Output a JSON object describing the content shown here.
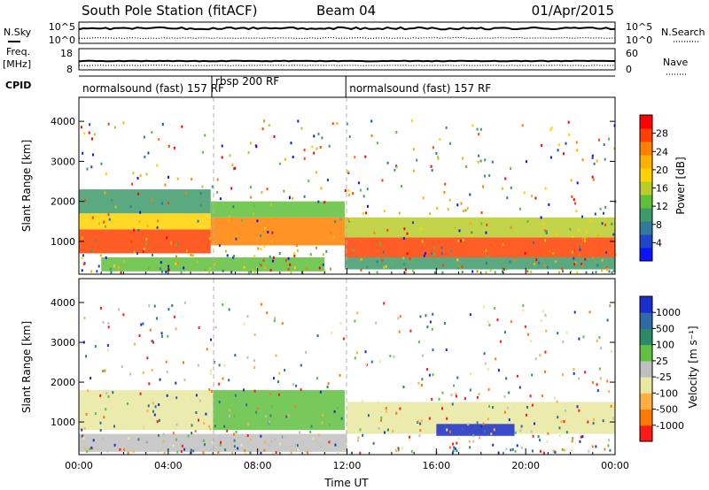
{
  "header": {
    "station": "South Pole Station (fitACF)",
    "beam": "Beam 04",
    "date": "01/Apr/2015"
  },
  "params": {
    "nsky_label": "N.Sky",
    "nsearch_label": "N.Search",
    "left_tick_top": "10^5",
    "left_tick_bottom": "10^0",
    "right_tick_top": "10^5",
    "right_tick_bottom": "10^0",
    "freq_label_1": "Freq.",
    "freq_label_2": "[MHz]",
    "freq_tick_top": "18",
    "freq_tick_bottom": "8",
    "nave_label": "Nave",
    "nave_tick_top": "60",
    "nave_tick_bottom": "0",
    "cpid_label": "CPID",
    "modes": [
      {
        "text": "normalsound (fast) 157 RF",
        "start_hour": 0,
        "end_hour": 5.95
      },
      {
        "text": "rbsp 200 RF",
        "start_hour": 5.95,
        "end_hour": 11.95
      },
      {
        "text": "normalsound (fast) 157 RF",
        "start_hour": 11.95,
        "end_hour": 24
      }
    ]
  },
  "chart_data": [
    {
      "type": "heatmap",
      "title": "",
      "xlabel": "",
      "ylabel": "Slant Range [km]",
      "xlim": [
        0,
        24
      ],
      "ylim": [
        180,
        4600
      ],
      "yticks": [
        1000,
        2000,
        3000,
        4000
      ],
      "colorbar": {
        "label": "Power [dB]",
        "ticks": [
          "4",
          "8",
          "12",
          "16",
          "20",
          "24",
          "28"
        ],
        "colors": [
          "#0a14ff",
          "#1e46c8",
          "#2f7a9a",
          "#3e9a6a",
          "#5fbf3a",
          "#b8cc2a",
          "#ffd200",
          "#ffb000",
          "#ff8000",
          "#ff4000",
          "#ff0000"
        ]
      },
      "bands": [
        {
          "t0": 0.0,
          "t1": 5.9,
          "r0": 700,
          "r1": 1300,
          "value": 27
        },
        {
          "t0": 0.0,
          "t1": 5.9,
          "r0": 1300,
          "r1": 1700,
          "value": 18
        },
        {
          "t0": 0.0,
          "t1": 5.9,
          "r0": 1700,
          "r1": 2300,
          "value": 9
        },
        {
          "t0": 5.9,
          "t1": 11.9,
          "r0": 900,
          "r1": 1600,
          "value": 25
        },
        {
          "t0": 5.9,
          "t1": 11.9,
          "r0": 1600,
          "r1": 2000,
          "value": 12
        },
        {
          "t0": 1.0,
          "t1": 11.0,
          "r0": 250,
          "r1": 600,
          "value": 14
        },
        {
          "t0": 11.9,
          "t1": 24.0,
          "r0": 600,
          "r1": 1100,
          "value": 28
        },
        {
          "t0": 11.9,
          "t1": 24.0,
          "r0": 1100,
          "r1": 1600,
          "value": 16
        },
        {
          "t0": 11.9,
          "t1": 24.0,
          "r0": 300,
          "r1": 600,
          "value": 10
        }
      ]
    },
    {
      "type": "heatmap",
      "title": "",
      "xlabel": "Time UT",
      "ylabel": "Slant Range [km]",
      "xlim": [
        0,
        24
      ],
      "ylim": [
        180,
        4600
      ],
      "xticks": [
        "00:00",
        "04:00",
        "08:00",
        "12:00",
        "16:00",
        "20:00",
        "00:00"
      ],
      "yticks": [
        1000,
        2000,
        3000,
        4000
      ],
      "colorbar": {
        "label": "Velocity [m s⁻¹]",
        "ticks": [
          "-1000",
          "-500",
          "-100",
          "-25",
          "25",
          "100",
          "500",
          "1000"
        ],
        "colors": [
          "#ff1a1a",
          "#ff7a00",
          "#ffb040",
          "#e8e8a0",
          "#bfbfbf",
          "#60c040",
          "#2e8a66",
          "#2d6aa6",
          "#1a2fd0"
        ]
      },
      "bands": [
        {
          "t0": 0.0,
          "t1": 6.0,
          "r0": 800,
          "r1": 1800,
          "value": -300
        },
        {
          "t0": 6.0,
          "t1": 11.9,
          "r0": 800,
          "r1": 1800,
          "value": 300
        },
        {
          "t0": 0.0,
          "t1": 12.0,
          "r0": 250,
          "r1": 700,
          "value": 60
        },
        {
          "t0": 12.0,
          "t1": 24.0,
          "r0": 700,
          "r1": 1500,
          "value": -200
        },
        {
          "t0": 16.0,
          "t1": 19.5,
          "r0": 650,
          "r1": 950,
          "value": 1000
        }
      ]
    }
  ]
}
